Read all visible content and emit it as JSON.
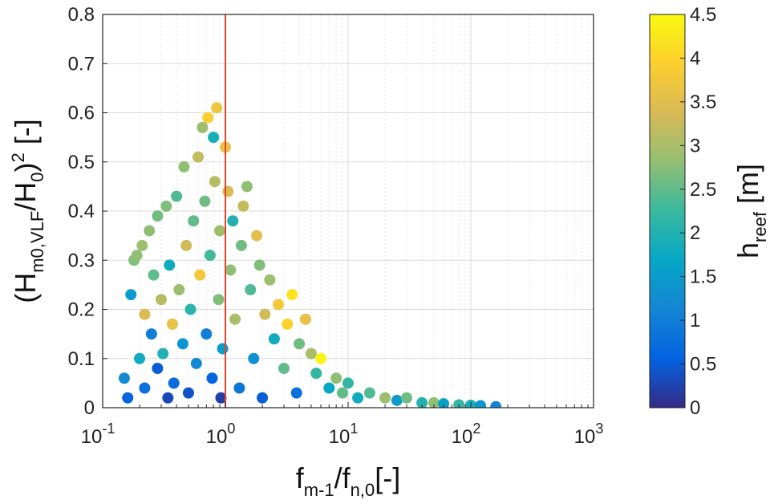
{
  "chart_data": {
    "type": "scatter",
    "x_scale": "log",
    "xlim": [
      0.1,
      1000
    ],
    "ylim": [
      0,
      0.8
    ],
    "grid": true,
    "x_ticks": [
      {
        "base": "10",
        "exp": "-1"
      },
      {
        "base": "10",
        "exp": "0"
      },
      {
        "base": "10",
        "exp": "1"
      },
      {
        "base": "10",
        "exp": "2"
      },
      {
        "base": "10",
        "exp": "3"
      }
    ],
    "y_ticks": [
      "0",
      "0.1",
      "0.2",
      "0.3",
      "0.4",
      "0.5",
      "0.6",
      "0.7",
      "0.8"
    ],
    "xlabel": {
      "main1": "f",
      "sub1": "m-1",
      "main2": "/f",
      "sub2": "n,0",
      "tail": "[-]"
    },
    "ylabel": {
      "open": "(H",
      "sub1": "m0,VLF",
      "mid": "/H",
      "sub2": "0",
      "close": ")",
      "sup": "2",
      "tail": " [-]"
    },
    "vertical_line": {
      "x": 1.0,
      "color": "#e8432a"
    },
    "colorbar": {
      "label_main": "h",
      "label_sub": "reef",
      "label_tail": " [m]",
      "range": [
        0,
        4.5
      ],
      "ticks": [
        "0",
        "0.5",
        "1",
        "1.5",
        "2",
        "2.5",
        "3",
        "3.5",
        "4",
        "4.5"
      ],
      "colormap": [
        "#352a87",
        "#0363e1",
        "#1485d4",
        "#06a7c6",
        "#38b99e",
        "#92bf73",
        "#d9ba56",
        "#fcce2e",
        "#f9fb0e"
      ]
    },
    "series": [
      {
        "points": [
          [
            0.15,
            0.06,
            1.2
          ],
          [
            0.16,
            0.02,
            0.6
          ],
          [
            0.17,
            0.23,
            1.5
          ],
          [
            0.18,
            0.3,
            2.7
          ],
          [
            0.19,
            0.31,
            2.8
          ],
          [
            0.2,
            0.1,
            1.8
          ],
          [
            0.21,
            0.33,
            2.9
          ],
          [
            0.22,
            0.19,
            3.4
          ],
          [
            0.22,
            0.04,
            0.8
          ],
          [
            0.24,
            0.36,
            2.8
          ],
          [
            0.25,
            0.15,
            1.0
          ],
          [
            0.26,
            0.27,
            2.5
          ],
          [
            0.28,
            0.39,
            2.6
          ],
          [
            0.28,
            0.08,
            0.5
          ],
          [
            0.3,
            0.22,
            3.1
          ],
          [
            0.31,
            0.11,
            2.0
          ],
          [
            0.33,
            0.41,
            2.7
          ],
          [
            0.34,
            0.02,
            0.3
          ],
          [
            0.35,
            0.29,
            1.8
          ],
          [
            0.37,
            0.17,
            3.6
          ],
          [
            0.38,
            0.05,
            0.7
          ],
          [
            0.4,
            0.43,
            2.4
          ],
          [
            0.42,
            0.24,
            2.9
          ],
          [
            0.45,
            0.13,
            1.4
          ],
          [
            0.46,
            0.49,
            2.8
          ],
          [
            0.48,
            0.33,
            3.3
          ],
          [
            0.5,
            0.03,
            0.4
          ],
          [
            0.52,
            0.2,
            2.1
          ],
          [
            0.55,
            0.38,
            2.5
          ],
          [
            0.58,
            0.09,
            1.2
          ],
          [
            0.6,
            0.51,
            3.2
          ],
          [
            0.62,
            0.27,
            3.8
          ],
          [
            0.65,
            0.57,
            2.9
          ],
          [
            0.68,
            0.42,
            2.6
          ],
          [
            0.7,
            0.15,
            1.0
          ],
          [
            0.72,
            0.59,
            3.9
          ],
          [
            0.75,
            0.31,
            2.3
          ],
          [
            0.78,
            0.06,
            0.6
          ],
          [
            0.8,
            0.55,
            1.9
          ],
          [
            0.82,
            0.46,
            3.1
          ],
          [
            0.85,
            0.61,
            3.7
          ],
          [
            0.88,
            0.22,
            2.7
          ],
          [
            0.9,
            0.36,
            2.9
          ],
          [
            0.92,
            0.02,
            0.2
          ],
          [
            0.95,
            0.12,
            1.5
          ],
          [
            1.0,
            0.53,
            3.6
          ],
          [
            1.05,
            0.44,
            3.4
          ],
          [
            1.1,
            0.28,
            2.8
          ],
          [
            1.15,
            0.38,
            2.0
          ],
          [
            1.2,
            0.18,
            3.0
          ],
          [
            1.3,
            0.04,
            0.9
          ],
          [
            1.35,
            0.33,
            2.6
          ],
          [
            1.4,
            0.41,
            3.2
          ],
          [
            1.5,
            0.45,
            2.8
          ],
          [
            1.6,
            0.24,
            2.4
          ],
          [
            1.7,
            0.1,
            1.3
          ],
          [
            1.8,
            0.35,
            3.5
          ],
          [
            1.9,
            0.29,
            2.7
          ],
          [
            2.0,
            0.02,
            0.5
          ],
          [
            2.1,
            0.19,
            3.3
          ],
          [
            2.3,
            0.26,
            2.9
          ],
          [
            2.5,
            0.14,
            1.8
          ],
          [
            2.7,
            0.21,
            3.8
          ],
          [
            3.0,
            0.08,
            2.5
          ],
          [
            3.2,
            0.17,
            4.0
          ],
          [
            3.5,
            0.23,
            4.2
          ],
          [
            3.8,
            0.03,
            0.8
          ],
          [
            4.0,
            0.13,
            2.6
          ],
          [
            4.5,
            0.18,
            3.6
          ],
          [
            5.0,
            0.11,
            3.0
          ],
          [
            5.5,
            0.07,
            2.2
          ],
          [
            6.0,
            0.1,
            4.4
          ],
          [
            7.0,
            0.04,
            1.7
          ],
          [
            8.0,
            0.06,
            2.8
          ],
          [
            9.0,
            0.03,
            2.5
          ],
          [
            10.0,
            0.05,
            2.2
          ],
          [
            12.0,
            0.02,
            1.8
          ],
          [
            15.0,
            0.03,
            2.4
          ],
          [
            20.0,
            0.02,
            2.9
          ],
          [
            25.0,
            0.015,
            1.5
          ],
          [
            30.0,
            0.02,
            2.6
          ],
          [
            40.0,
            0.01,
            2.0
          ],
          [
            50.0,
            0.01,
            2.8
          ],
          [
            60.0,
            0.008,
            1.6
          ],
          [
            80.0,
            0.006,
            2.2
          ],
          [
            100.0,
            0.005,
            1.9
          ],
          [
            120.0,
            0.004,
            1.4
          ],
          [
            160.0,
            0.002,
            1.1
          ]
        ]
      }
    ]
  }
}
